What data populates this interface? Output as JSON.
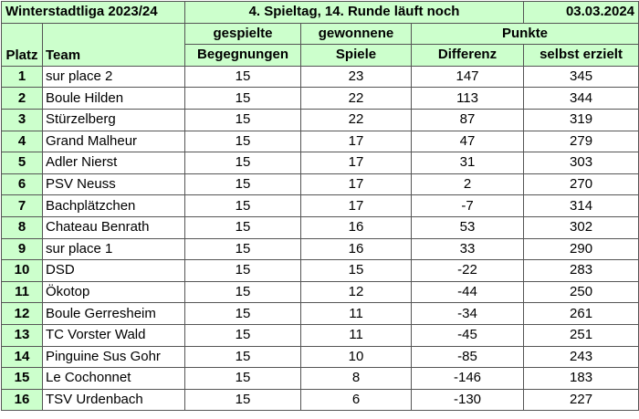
{
  "header": {
    "league": "Winterstadtliga 2023/24",
    "round": "4. Spieltag, 14. Runde läuft noch",
    "date": "03.03.2024"
  },
  "columns": {
    "platz": "Platz",
    "team": "Team",
    "games_top": "gespielte",
    "games_bottom": "Begegnungen",
    "won_top": "gewonnene",
    "won_bottom": "Spiele",
    "points_top": "Punkte",
    "diff": "Differenz",
    "scored": "selbst erzielt"
  },
  "rows": [
    {
      "rank": "1",
      "team": "sur place 2",
      "games": "15",
      "won": "23",
      "diff": "147",
      "scored": "345"
    },
    {
      "rank": "2",
      "team": "Boule Hilden",
      "games": "15",
      "won": "22",
      "diff": "113",
      "scored": "344"
    },
    {
      "rank": "3",
      "team": "Stürzelberg",
      "games": "15",
      "won": "22",
      "diff": "87",
      "scored": "319"
    },
    {
      "rank": "4",
      "team": "Grand Malheur",
      "games": "15",
      "won": "17",
      "diff": "47",
      "scored": "279"
    },
    {
      "rank": "5",
      "team": "Adler Nierst",
      "games": "15",
      "won": "17",
      "diff": "31",
      "scored": "303"
    },
    {
      "rank": "6",
      "team": "PSV Neuss",
      "games": "15",
      "won": "17",
      "diff": "2",
      "scored": "270"
    },
    {
      "rank": "7",
      "team": "Bachplätzchen",
      "games": "15",
      "won": "17",
      "diff": "-7",
      "scored": "314"
    },
    {
      "rank": "8",
      "team": "Chateau Benrath",
      "games": "15",
      "won": "16",
      "diff": "53",
      "scored": "302"
    },
    {
      "rank": "9",
      "team": "sur place 1",
      "games": "15",
      "won": "16",
      "diff": "33",
      "scored": "290"
    },
    {
      "rank": "10",
      "team": "DSD",
      "games": "15",
      "won": "15",
      "diff": "-22",
      "scored": "283"
    },
    {
      "rank": "11",
      "team": "Ökotop",
      "games": "15",
      "won": "12",
      "diff": "-44",
      "scored": "250"
    },
    {
      "rank": "12",
      "team": "Boule Gerresheim",
      "games": "15",
      "won": "11",
      "diff": "-34",
      "scored": "261"
    },
    {
      "rank": "13",
      "team": "TC Vorster Wald",
      "games": "15",
      "won": "11",
      "diff": "-45",
      "scored": "251"
    },
    {
      "rank": "14",
      "team": "Pinguine Sus Gohr",
      "games": "15",
      "won": "10",
      "diff": "-85",
      "scored": "243"
    },
    {
      "rank": "15",
      "team": "Le Cochonnet",
      "games": "15",
      "won": "8",
      "diff": "-146",
      "scored": "183"
    },
    {
      "rank": "16",
      "team": "TSV Urdenbach",
      "games": "15",
      "won": "6",
      "diff": "-130",
      "scored": "227"
    }
  ]
}
